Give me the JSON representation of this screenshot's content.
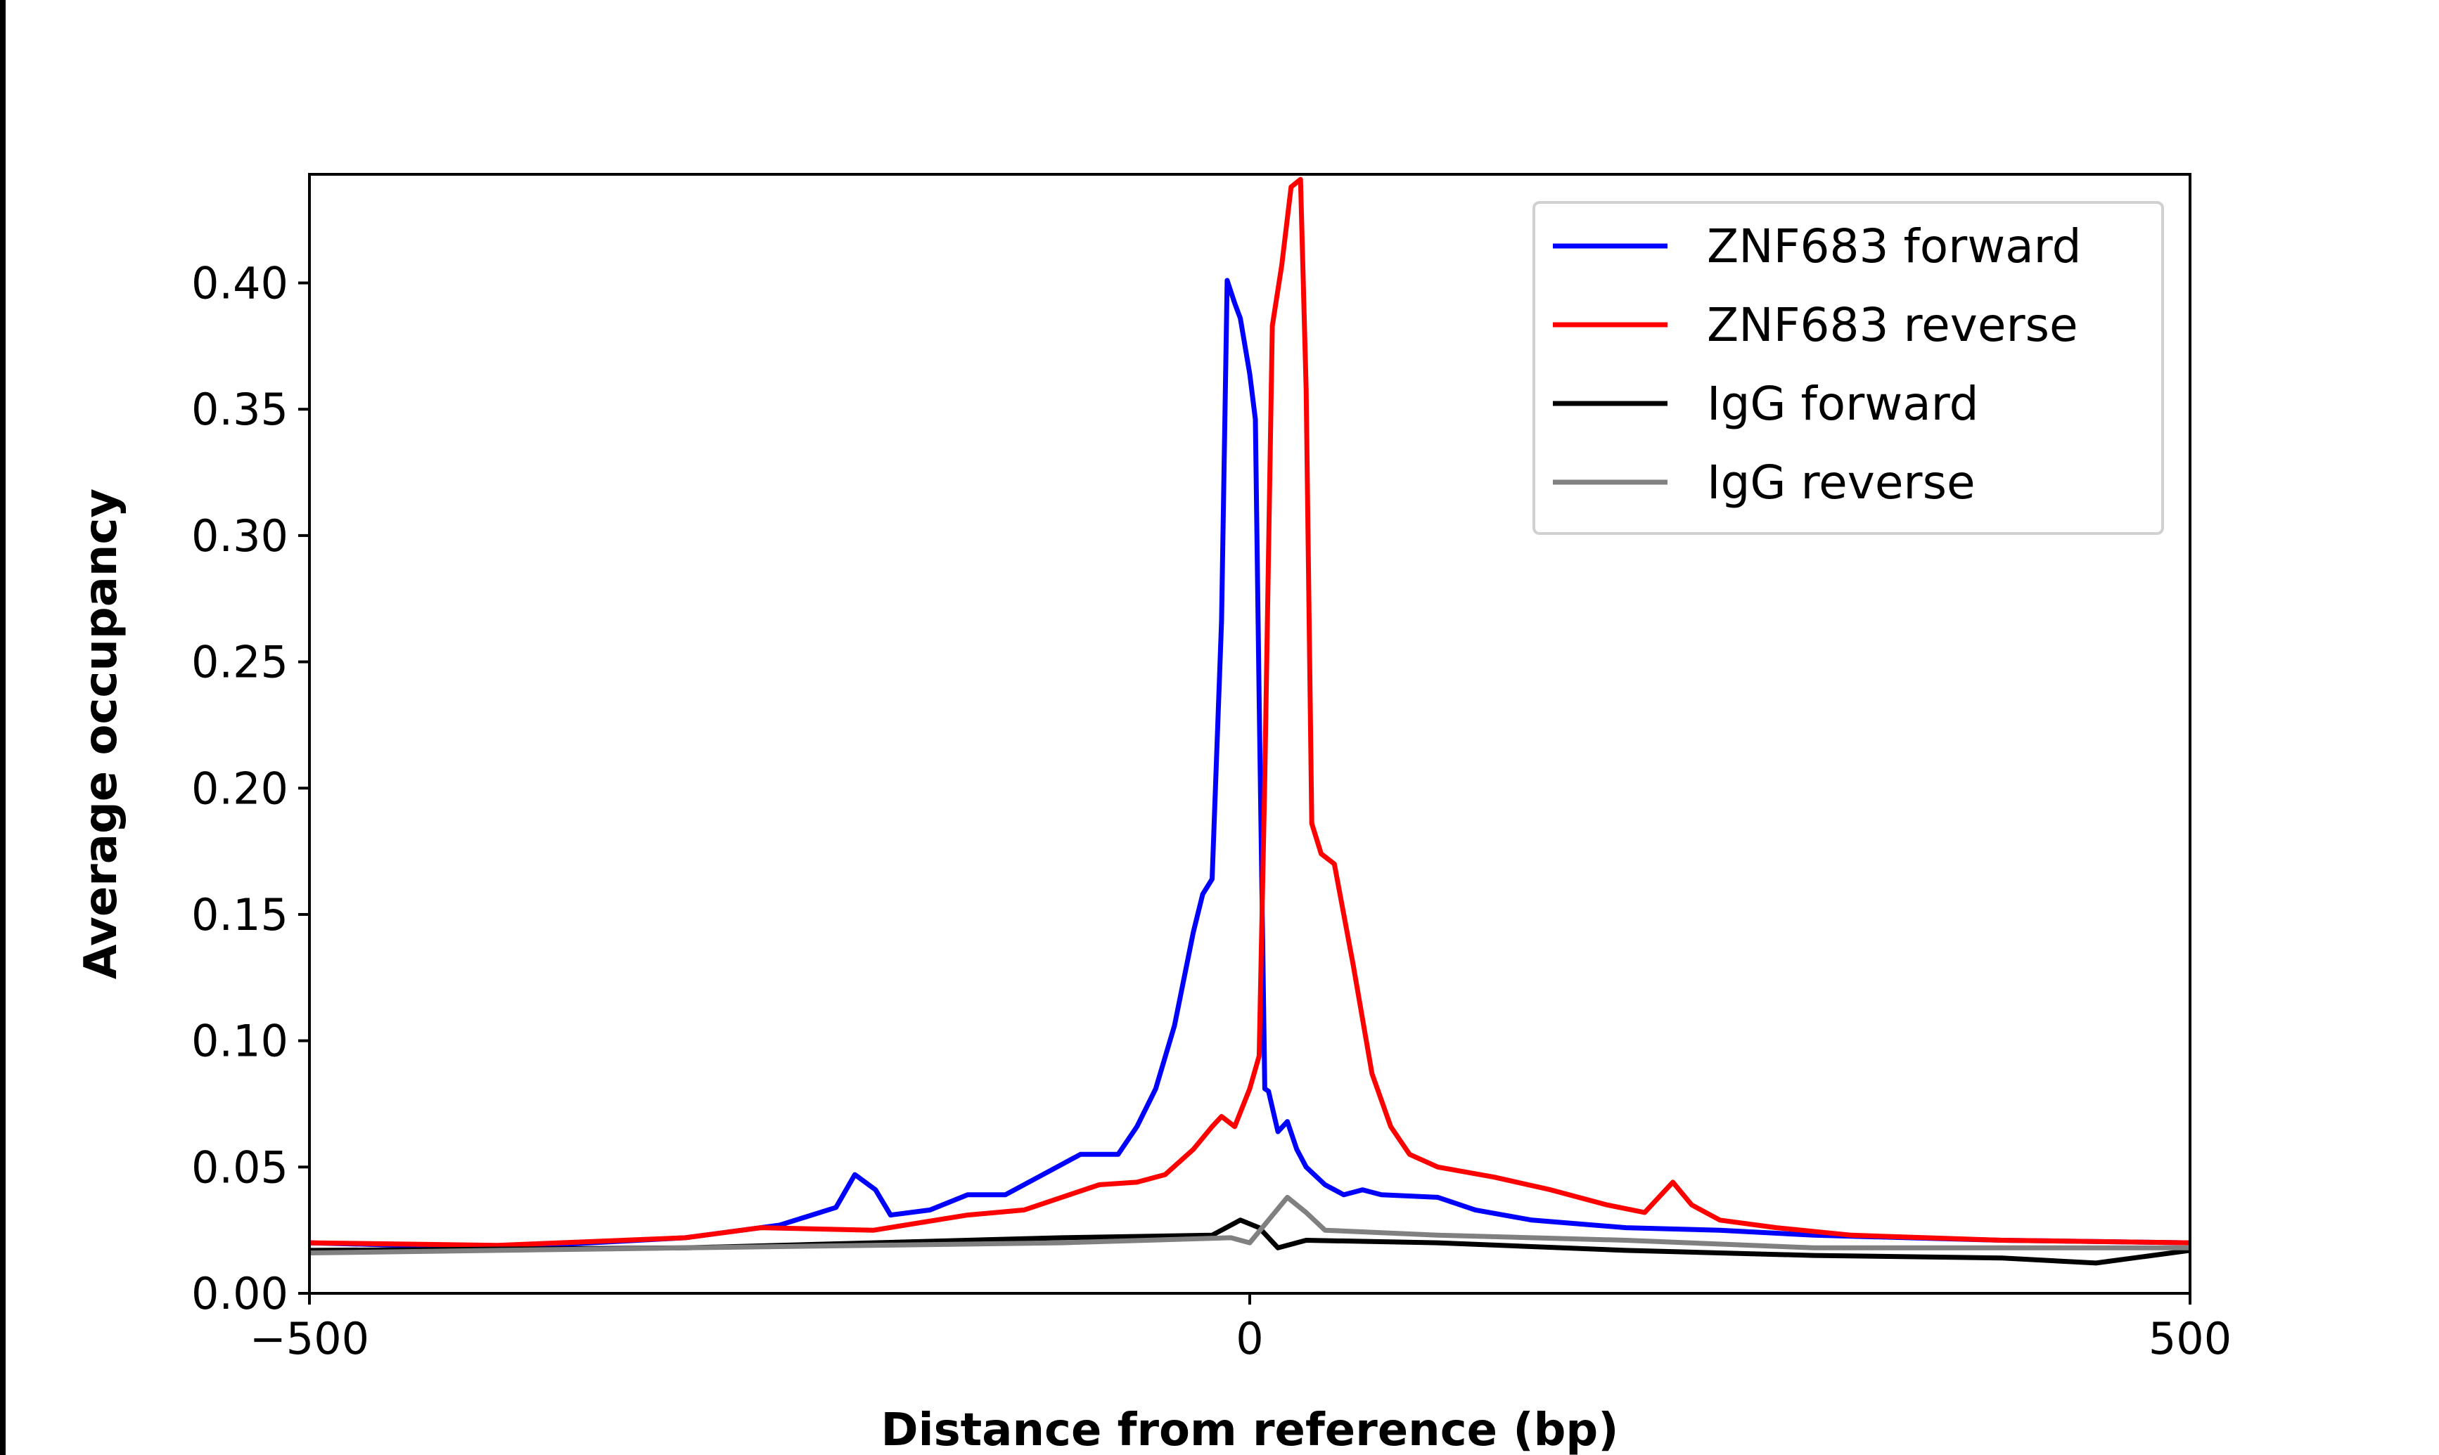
{
  "chart_data": {
    "type": "line",
    "title": "",
    "xlabel": "Distance from reference (bp)",
    "ylabel": "Average occupancy",
    "xlim": [
      -500,
      500
    ],
    "ylim": [
      0,
      0.443
    ],
    "xticks": [
      -500,
      0,
      500
    ],
    "xtick_labels": [
      "−500",
      "0",
      "500"
    ],
    "yticks": [
      0,
      0.05,
      0.1,
      0.15,
      0.2,
      0.25,
      0.3,
      0.35,
      0.4
    ],
    "ytick_labels": [
      "0.00",
      "0.05",
      "0.10",
      "0.15",
      "0.20",
      "0.25",
      "0.30",
      "0.35",
      "0.40"
    ],
    "grid": false,
    "legend_position": "top-right",
    "series": [
      {
        "name": "ZNF683 forward",
        "color": "#0000ff",
        "x": [
          -500,
          -400,
          -300,
          -250,
          -220,
          -210,
          -199,
          -191,
          -170,
          -150,
          -130,
          -110,
          -90,
          -70,
          -60,
          -50,
          -40,
          -30,
          -25,
          -20,
          -15,
          -12,
          -8,
          -5,
          0,
          3,
          5,
          8,
          10,
          15,
          20,
          25,
          30,
          40,
          50,
          60,
          70,
          100,
          120,
          150,
          200,
          250,
          300,
          350,
          400,
          500
        ],
        "y": [
          0.02,
          0.018,
          0.022,
          0.027,
          0.034,
          0.047,
          0.041,
          0.031,
          0.033,
          0.039,
          0.039,
          0.047,
          0.055,
          0.055,
          0.066,
          0.081,
          0.106,
          0.143,
          0.158,
          0.164,
          0.266,
          0.401,
          0.392,
          0.386,
          0.364,
          0.346,
          0.235,
          0.081,
          0.08,
          0.064,
          0.068,
          0.057,
          0.05,
          0.043,
          0.039,
          0.041,
          0.039,
          0.038,
          0.033,
          0.029,
          0.026,
          0.025,
          0.023,
          0.022,
          0.021,
          0.02
        ]
      },
      {
        "name": "ZNF683 reverse",
        "color": "#ff0000",
        "x": [
          -500,
          -400,
          -300,
          -260,
          -200,
          -150,
          -120,
          -100,
          -80,
          -60,
          -45,
          -30,
          -20,
          -15,
          -8,
          0,
          5,
          8,
          12,
          17,
          22,
          27,
          30,
          33,
          38,
          45,
          55,
          65,
          75,
          85,
          100,
          130,
          160,
          190,
          210,
          225,
          235,
          250,
          280,
          320,
          400,
          500
        ],
        "y": [
          0.02,
          0.019,
          0.022,
          0.026,
          0.025,
          0.031,
          0.033,
          0.038,
          0.043,
          0.044,
          0.047,
          0.057,
          0.066,
          0.07,
          0.066,
          0.081,
          0.094,
          0.204,
          0.383,
          0.407,
          0.438,
          0.441,
          0.358,
          0.186,
          0.174,
          0.17,
          0.13,
          0.087,
          0.066,
          0.055,
          0.05,
          0.046,
          0.041,
          0.035,
          0.032,
          0.044,
          0.035,
          0.029,
          0.026,
          0.023,
          0.021,
          0.02
        ]
      },
      {
        "name": "IgG forward",
        "color": "#000000",
        "x": [
          -500,
          -300,
          -200,
          -100,
          -20,
          -5,
          5,
          15,
          30,
          100,
          200,
          300,
          400,
          450,
          500
        ],
        "y": [
          0.017,
          0.018,
          0.02,
          0.022,
          0.023,
          0.029,
          0.026,
          0.018,
          0.021,
          0.02,
          0.017,
          0.015,
          0.014,
          0.012,
          0.017
        ]
      },
      {
        "name": "IgG reverse",
        "color": "#808080",
        "x": [
          -500,
          -300,
          -100,
          -10,
          0,
          10,
          20,
          30,
          40,
          100,
          200,
          300,
          500
        ],
        "y": [
          0.016,
          0.018,
          0.02,
          0.022,
          0.02,
          0.029,
          0.038,
          0.032,
          0.025,
          0.023,
          0.021,
          0.018,
          0.018
        ]
      }
    ]
  }
}
